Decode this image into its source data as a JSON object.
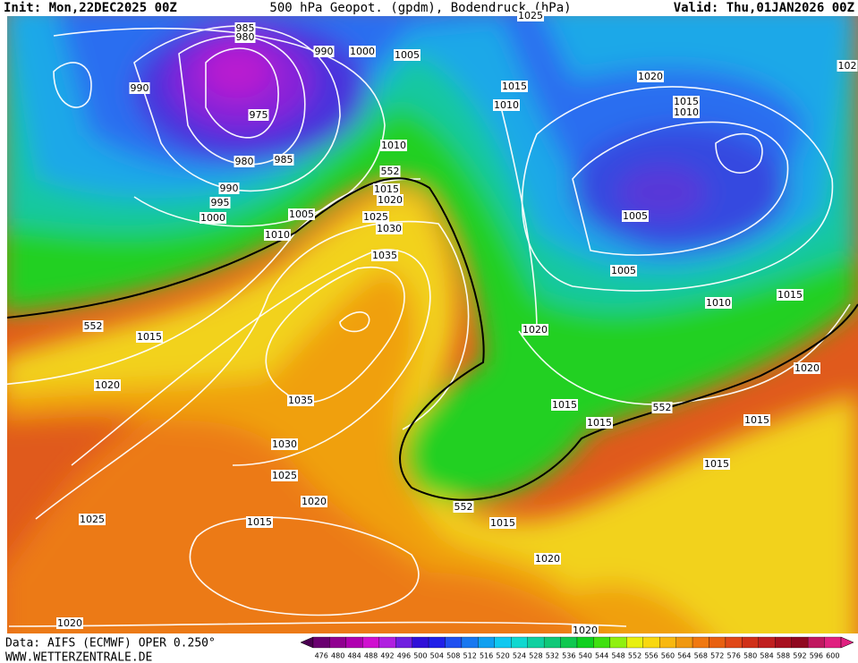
{
  "header": {
    "init": "Init: Mon,22DEC2025 00Z",
    "title": "500 hPa Geopot. (gpdm), Bodendruck (hPa)",
    "valid": "Valid: Thu,01JAN2026 00Z"
  },
  "footer": {
    "source": "Data: AIFS (ECMWF) OPER 0.250°",
    "website": "WWW.WETTERZENTRALE.DE"
  },
  "colorbar": {
    "labels": [
      476,
      480,
      484,
      488,
      492,
      496,
      500,
      504,
      508,
      512,
      516,
      520,
      524,
      528,
      532,
      536,
      540,
      544,
      548,
      552,
      556,
      560,
      564,
      568,
      572,
      576,
      580,
      584,
      588,
      592,
      596,
      600
    ]
  },
  "isobar_labels": [
    985,
    980,
    990,
    1000,
    1005,
    990,
    975,
    980,
    985,
    990,
    995,
    1000,
    1005,
    1010,
    1010,
    552,
    1015,
    1020,
    1025,
    1030,
    1035,
    1015,
    1010,
    1020,
    1015,
    1010,
    1005,
    1005,
    1010,
    1015,
    1020,
    1020,
    552,
    1015,
    1020,
    1035,
    1030,
    1025,
    1020,
    1025,
    1015,
    552,
    1015,
    1015,
    1015,
    552,
    1015,
    1015,
    1020,
    1020,
    1020,
    1025,
    102
  ]
}
